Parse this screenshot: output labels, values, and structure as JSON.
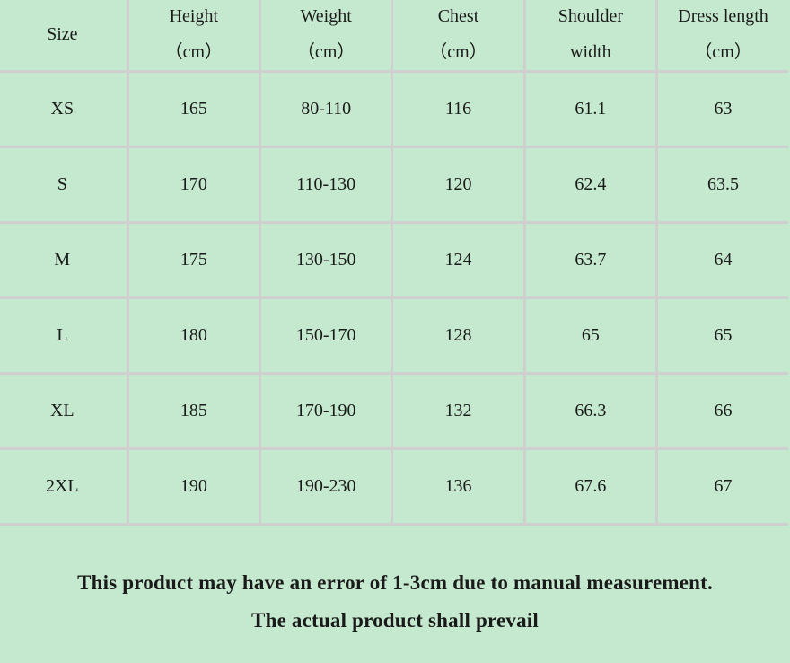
{
  "table": {
    "headers": [
      [
        "Size",
        ""
      ],
      [
        "Height",
        "（cm）"
      ],
      [
        "Weight",
        "（cm）"
      ],
      [
        "Chest",
        "（cm）"
      ],
      [
        "Shoulder",
        "width"
      ],
      [
        "Dress length",
        "（cm）"
      ]
    ],
    "rows": [
      [
        "XS",
        "165",
        "80-110",
        "116",
        "61.1",
        "63"
      ],
      [
        "S",
        "170",
        "110-130",
        "120",
        "62.4",
        "63.5"
      ],
      [
        "M",
        "175",
        "130-150",
        "124",
        "63.7",
        "64"
      ],
      [
        "L",
        "180",
        "150-170",
        "128",
        "65",
        "65"
      ],
      [
        "XL",
        "185",
        "170-190",
        "132",
        "66.3",
        "66"
      ],
      [
        "2XL",
        "190",
        "190-230",
        "136",
        "67.6",
        "67"
      ]
    ]
  },
  "note": {
    "line1": "This product may have an error of 1-3cm due to manual measurement.",
    "line2": "The actual product shall prevail"
  },
  "colors": {
    "background": "#c5e9cf",
    "grid": "#cfcfcf",
    "text": "#1a1a1a"
  }
}
